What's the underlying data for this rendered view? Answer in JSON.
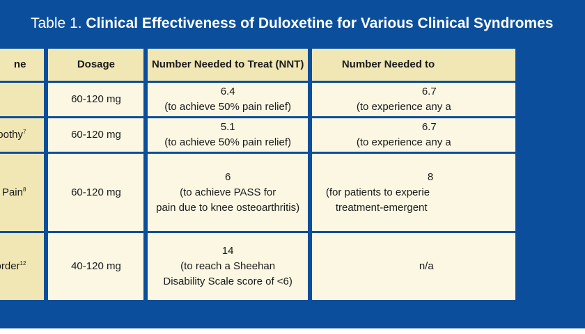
{
  "title": {
    "prefix": "Table 1.",
    "text": "Clinical Effectiveness of Duloxetine for Various Clinical Syndromes"
  },
  "headers": [
    "ne",
    "Dosage",
    "Number Needed to Treat (NNT)",
    "Number Needed to"
  ],
  "rows": [
    {
      "syndrome": "",
      "syndrome_sup": "",
      "dosage": "60-120 mg",
      "nnt": [
        "6.4",
        "(to achieve 50% pain relief)"
      ],
      "nnh": [
        "6.7",
        "(to experience any a"
      ]
    },
    {
      "syndrome": "europothy",
      "syndrome_sup": "7",
      "dosage": "60-120 mg",
      "nnt": [
        "5.1",
        "(to achieve 50% pain relief)"
      ],
      "nnh": [
        "6.7",
        "(to experience any a"
      ]
    },
    {
      "syndrome": "eletal Pain",
      "syndrome_sup": "8",
      "dosage": "60-120 mg",
      "nnt": [
        "6",
        "(to achieve PASS for",
        "pain due to knee osteoarthritis)"
      ],
      "nnh": [
        "8",
        "(for patients to experie",
        "treatment-emergent"
      ]
    },
    {
      "syndrome": "Disorder",
      "syndrome_sup": "12",
      "dosage": "40-120 mg",
      "nnt": [
        "14",
        "(to reach a Sheehan",
        "Disability Scale score of <6)"
      ],
      "nnh": [
        "n/a"
      ]
    }
  ],
  "colors": {
    "frame_blue": "#0b4f9c",
    "header_tan": "#f1e7b4",
    "cell_cream": "#fbf7e3"
  }
}
